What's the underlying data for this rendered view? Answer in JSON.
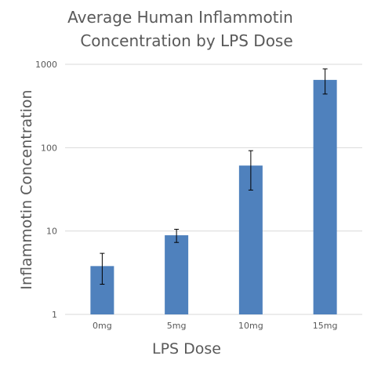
{
  "chart_data": {
    "type": "bar",
    "title_lines": [
      "Average Human Inflammotin",
      "Concentration by LPS Dose"
    ],
    "xlabel": "LPS Dose",
    "ylabel": "Inflammotin Concentration",
    "yscale": "log",
    "ylim": [
      1,
      1000
    ],
    "yticks": [
      "1",
      "10",
      "100",
      "1000"
    ],
    "grid": true,
    "legend": "none",
    "categories": [
      "0mg",
      "5mg",
      "10mg",
      "15mg"
    ],
    "series": [
      {
        "values": [
          3.8,
          8.9,
          61,
          650
        ],
        "error_low": [
          2.3,
          7.3,
          31,
          440
        ],
        "error_high": [
          5.4,
          10.5,
          92,
          880
        ]
      }
    ],
    "bar_color": "#4f81bd",
    "grid_color": "#d9d9d9",
    "text_color": "#595959"
  }
}
